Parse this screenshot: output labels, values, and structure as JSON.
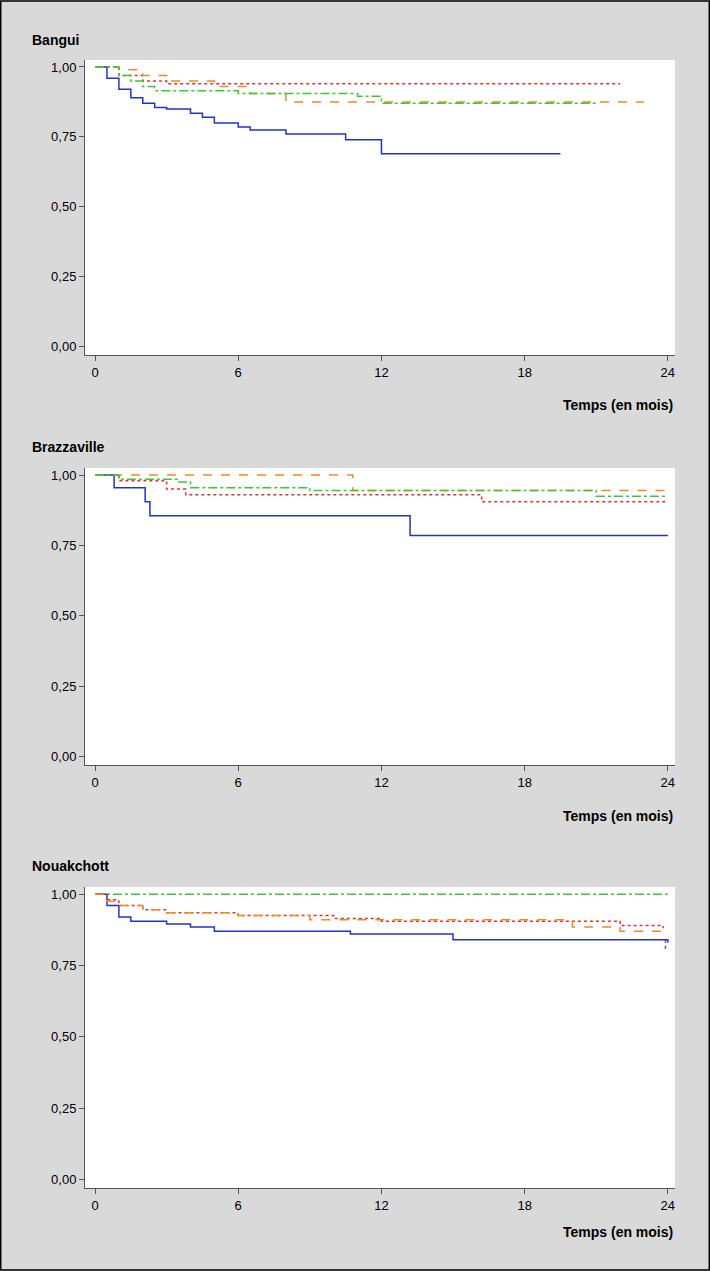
{
  "chart_data": [
    {
      "type": "step",
      "title": "Bangui",
      "x_label": "Temps (en mois)",
      "grid": false,
      "xlim": [
        -0.42,
        24.3
      ],
      "ylim": [
        -0.03,
        1.025
      ],
      "xticks": [
        0,
        6,
        12,
        18,
        24
      ],
      "yticks": [
        {
          "value": 0,
          "label": "0,00"
        },
        {
          "value": 0.25,
          "label": "0,25"
        },
        {
          "value": 0.5,
          "label": "0,50"
        },
        {
          "value": 0.75,
          "label": "0,75"
        },
        {
          "value": 1,
          "label": "1,00"
        }
      ],
      "series": [
        {
          "color": "#2233cc",
          "line_style": "solid",
          "x": [
            0,
            0.5,
            1,
            1.5,
            2,
            2.5,
            3,
            4,
            4.5,
            5,
            6,
            6.5,
            8,
            10.5,
            12,
            19.5
          ],
          "values": [
            1,
            0.96,
            0.92,
            0.89,
            0.87,
            0.855,
            0.85,
            0.835,
            0.82,
            0.8,
            0.785,
            0.775,
            0.76,
            0.74,
            0.69,
            0.69
          ]
        },
        {
          "color": "#e8302a",
          "line_style": "dot",
          "x": [
            0,
            1,
            2,
            3,
            22
          ],
          "values": [
            1,
            0.97,
            0.95,
            0.94,
            0.94
          ]
        },
        {
          "color": "#f08a1e",
          "line_style": "dash",
          "x": [
            0,
            1,
            2,
            3,
            5,
            6.5,
            8,
            23
          ],
          "values": [
            1,
            0.99,
            0.97,
            0.95,
            0.93,
            0.905,
            0.875,
            0.875
          ]
        },
        {
          "color": "#3cc832",
          "line_style": "dashdot",
          "x": [
            0,
            1,
            1.5,
            2,
            2.5,
            6,
            11,
            12,
            21
          ],
          "values": [
            1,
            0.97,
            0.95,
            0.93,
            0.915,
            0.905,
            0.895,
            0.87,
            0.87
          ]
        }
      ]
    },
    {
      "type": "step",
      "title": "Brazzaville",
      "x_label": "Temps (en mois)",
      "grid": false,
      "xlim": [
        -0.42,
        24.3
      ],
      "ylim": [
        -0.03,
        1.025
      ],
      "xticks": [
        0,
        6,
        12,
        18,
        24
      ],
      "yticks": [
        {
          "value": 0,
          "label": "0,00"
        },
        {
          "value": 0.25,
          "label": "0,25"
        },
        {
          "value": 0.5,
          "label": "0,50"
        },
        {
          "value": 0.75,
          "label": "0,75"
        },
        {
          "value": 1,
          "label": "1,00"
        }
      ],
      "series": [
        {
          "color": "#2233cc",
          "line_style": "solid",
          "x": [
            0,
            0.8,
            2.1,
            2.3,
            13.2,
            24
          ],
          "values": [
            1,
            0.955,
            0.905,
            0.855,
            0.785,
            0.785
          ]
        },
        {
          "color": "#e8302a",
          "line_style": "dot",
          "x": [
            0,
            1,
            3,
            3.8,
            16.2,
            24
          ],
          "values": [
            1,
            0.98,
            0.95,
            0.93,
            0.905,
            0.905
          ]
        },
        {
          "color": "#f08a1e",
          "line_style": "dash",
          "x": [
            0,
            10.8,
            24
          ],
          "values": [
            1,
            0.945,
            0.945
          ]
        },
        {
          "color": "#3cc832",
          "line_style": "dashdot",
          "x": [
            0,
            1,
            3.5,
            4,
            9,
            21,
            24
          ],
          "values": [
            1,
            0.985,
            0.975,
            0.955,
            0.945,
            0.925,
            0.925
          ]
        }
      ]
    },
    {
      "type": "step",
      "title": "Nouakchott",
      "x_label": "Temps (en mois)",
      "grid": false,
      "xlim": [
        -0.42,
        24.3
      ],
      "ylim": [
        -0.03,
        1.025
      ],
      "xticks": [
        0,
        6,
        12,
        18,
        24
      ],
      "yticks": [
        {
          "value": 0,
          "label": "0,00"
        },
        {
          "value": 0.25,
          "label": "0,25"
        },
        {
          "value": 0.5,
          "label": "0,50"
        },
        {
          "value": 0.75,
          "label": "0,75"
        },
        {
          "value": 1,
          "label": "1,00"
        }
      ],
      "series": [
        {
          "color": "#3cc832",
          "line_style": "dashdot",
          "x": [
            0,
            24
          ],
          "values": [
            1,
            1
          ]
        },
        {
          "color": "#2233cc",
          "line_style": "solid",
          "x": [
            0,
            0.5,
            1,
            1.5,
            3,
            4,
            5,
            10.7,
            15,
            24
          ],
          "values": [
            1,
            0.96,
            0.92,
            0.905,
            0.895,
            0.885,
            0.87,
            0.86,
            0.84,
            0.83
          ]
        },
        {
          "color": "#e8302a",
          "line_style": "dot",
          "x": [
            0,
            0.5,
            1,
            2,
            3,
            6,
            10,
            12,
            22,
            23.8
          ],
          "values": [
            1,
            0.98,
            0.96,
            0.945,
            0.935,
            0.925,
            0.915,
            0.905,
            0.89,
            0.88
          ]
        },
        {
          "color": "#f08a1e",
          "line_style": "dash",
          "x": [
            0,
            0.5,
            1,
            2,
            3,
            6,
            9,
            20,
            22,
            24
          ],
          "values": [
            1,
            0.975,
            0.96,
            0.945,
            0.935,
            0.925,
            0.91,
            0.885,
            0.87,
            0.865
          ]
        },
        {
          "color": "#a020c0",
          "line_style": "dot",
          "x": [
            23.9,
            23.9
          ],
          "values": [
            0.84,
            0.805
          ]
        }
      ]
    }
  ]
}
